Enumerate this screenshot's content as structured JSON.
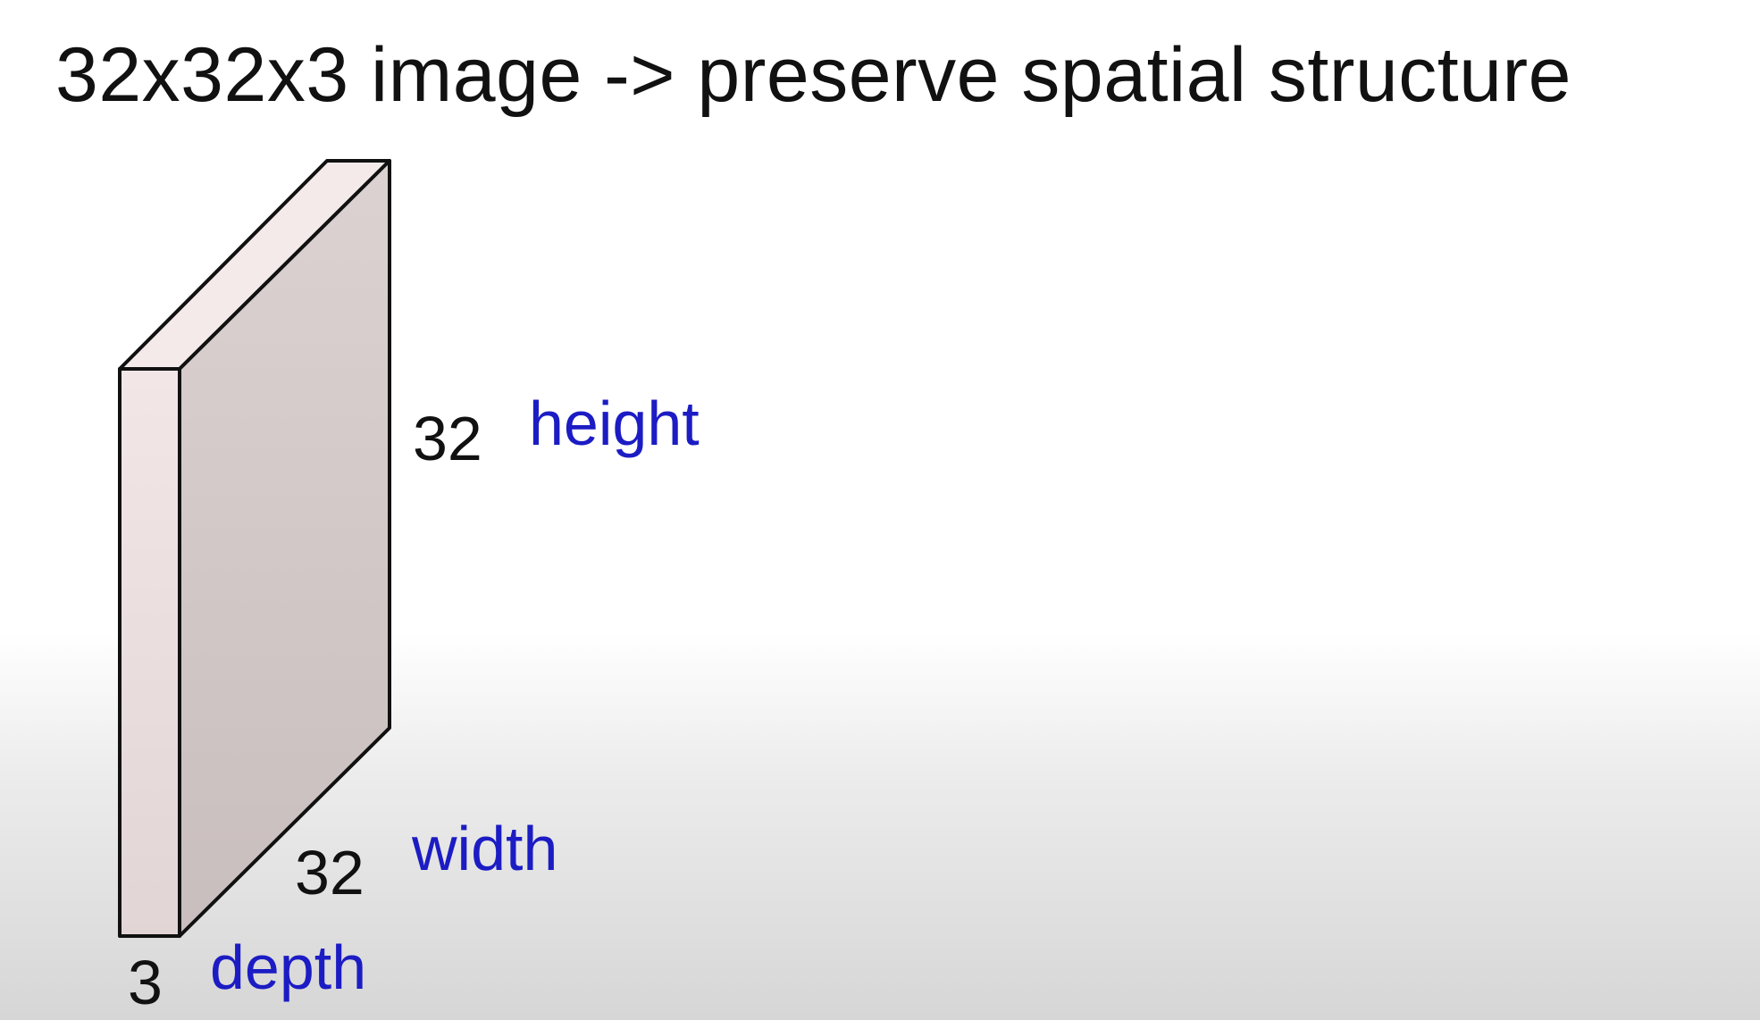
{
  "slide": {
    "title": "32x32x3 image -> preserve spatial structure"
  },
  "volume": {
    "height_value": "32",
    "height_label": "height",
    "width_value": "32",
    "width_label": "width",
    "depth_value": "3",
    "depth_label": "depth"
  },
  "colors": {
    "label_blue": "#1c1cc4",
    "front_face": "#f1e4e4",
    "side_face": "#d9cfcf",
    "top_face": "#f5eaea",
    "edge": "#111111"
  }
}
